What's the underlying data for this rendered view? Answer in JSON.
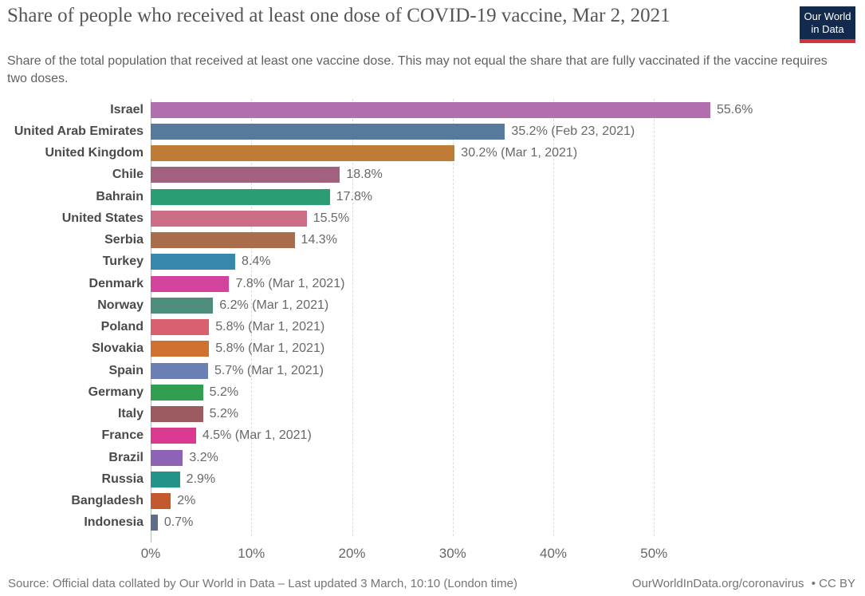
{
  "header": {
    "title": "Share of people who received at least one dose of COVID-19 vaccine, Mar 2, 2021",
    "subtitle": "Share of the total population that received at least one vaccine dose. This may not equal the share that are fully vaccinated if the vaccine requires two doses.",
    "logo": {
      "line1": "Our World",
      "line2": "in Data",
      "bg_color": "#122a4d",
      "accent_color": "#d13438"
    }
  },
  "footer": {
    "source": "Source: Official data collated by Our World in Data – Last updated 3 March, 10:10 (London time)",
    "link": "OurWorldInData.org/coronavirus",
    "license": "• CC BY"
  },
  "chart_data": {
    "type": "bar",
    "orientation": "horizontal",
    "title": "Share of people who received at least one dose of COVID-19 vaccine, Mar 2, 2021",
    "xlabel": "",
    "ylabel": "",
    "xlim": [
      0,
      55.6
    ],
    "x_tick_values": [
      0,
      10,
      20,
      30,
      40,
      50
    ],
    "x_tick_labels": [
      "0%",
      "10%",
      "20%",
      "30%",
      "40%",
      "50%"
    ],
    "grid": "vertical-dashed",
    "legend": "none",
    "rows": [
      {
        "country": "Israel",
        "value": 55.6,
        "label": "55.6%",
        "color": "#b16fae"
      },
      {
        "country": "United Arab Emirates",
        "value": 35.2,
        "label": "35.2% (Feb 23, 2021)",
        "color": "#57799e"
      },
      {
        "country": "United Kingdom",
        "value": 30.2,
        "label": "30.2% (Mar 1, 2021)",
        "color": "#c07b36"
      },
      {
        "country": "Chile",
        "value": 18.8,
        "label": "18.8%",
        "color": "#a2617e"
      },
      {
        "country": "Bahrain",
        "value": 17.8,
        "label": "17.8%",
        "color": "#2a9d74"
      },
      {
        "country": "United States",
        "value": 15.5,
        "label": "15.5%",
        "color": "#cb6d85"
      },
      {
        "country": "Serbia",
        "value": 14.3,
        "label": "14.3%",
        "color": "#aa6d4c"
      },
      {
        "country": "Turkey",
        "value": 8.4,
        "label": "8.4%",
        "color": "#3788ab"
      },
      {
        "country": "Denmark",
        "value": 7.8,
        "label": "7.8% (Mar 1, 2021)",
        "color": "#d2439e"
      },
      {
        "country": "Norway",
        "value": 6.2,
        "label": "6.2% (Mar 1, 2021)",
        "color": "#4e8d7c"
      },
      {
        "country": "Poland",
        "value": 5.8,
        "label": "5.8% (Mar 1, 2021)",
        "color": "#d9606f"
      },
      {
        "country": "Slovakia",
        "value": 5.8,
        "label": "5.8% (Mar 1, 2021)",
        "color": "#ce7131"
      },
      {
        "country": "Spain",
        "value": 5.7,
        "label": "5.7% (Mar 1, 2021)",
        "color": "#6b80b2"
      },
      {
        "country": "Germany",
        "value": 5.2,
        "label": "5.2%",
        "color": "#30a050"
      },
      {
        "country": "Italy",
        "value": 5.2,
        "label": "5.2%",
        "color": "#9c5b60"
      },
      {
        "country": "France",
        "value": 4.5,
        "label": "4.5% (Mar 1, 2021)",
        "color": "#d93a90"
      },
      {
        "country": "Brazil",
        "value": 3.2,
        "label": "3.2%",
        "color": "#8d63b6"
      },
      {
        "country": "Russia",
        "value": 2.9,
        "label": "2.9%",
        "color": "#219489"
      },
      {
        "country": "Bangladesh",
        "value": 2,
        "label": "2%",
        "color": "#c5592e"
      },
      {
        "country": "Indonesia",
        "value": 0.7,
        "label": "0.7%",
        "color": "#5c6e8b"
      }
    ]
  }
}
